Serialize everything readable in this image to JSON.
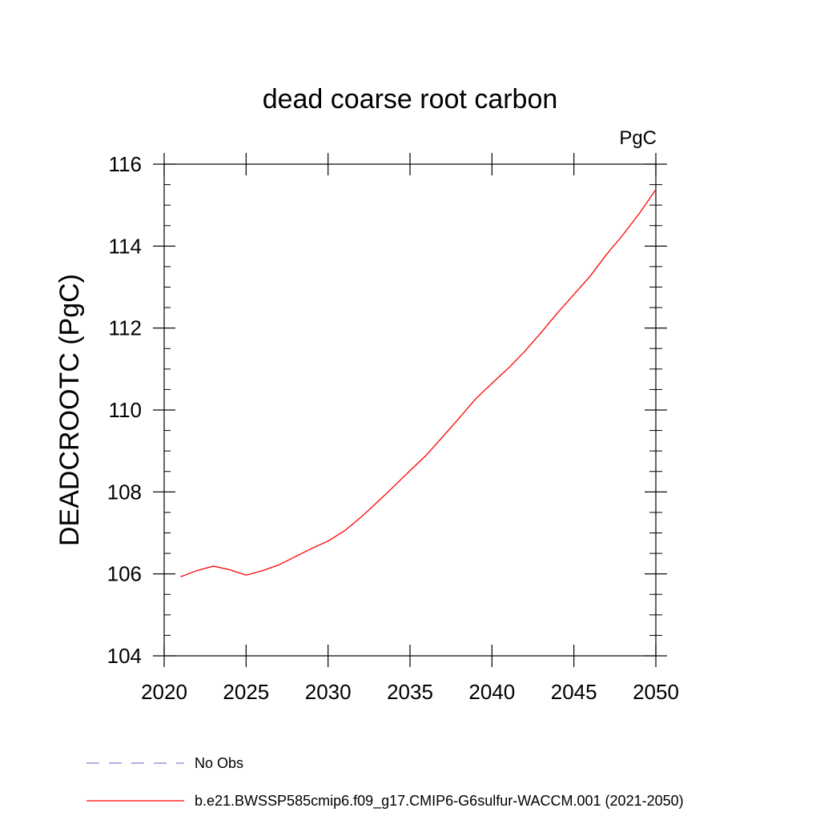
{
  "chart_data": {
    "type": "line",
    "title": "dead coarse root carbon",
    "units_label": "PgC",
    "ylabel": "DEADCROOTC  (PgC)",
    "xlabel": "",
    "xlim": [
      2020,
      2050
    ],
    "ylim": [
      104,
      116
    ],
    "x_ticks": [
      2020,
      2025,
      2030,
      2035,
      2040,
      2045,
      2050
    ],
    "y_ticks": [
      104,
      106,
      108,
      110,
      112,
      114,
      116
    ],
    "x_tick_labels": [
      "2020",
      "2025",
      "2030",
      "2035",
      "2040",
      "2045",
      "2050"
    ],
    "y_tick_labels": [
      "104",
      "106",
      "108",
      "110",
      "112",
      "114",
      "116"
    ],
    "grid": false,
    "legend_position": "bottom",
    "series": [
      {
        "name": "b.e21.BWSSP585cmip6.f09_g17.CMIP6-G6sulfur-WACCM.001 (2021-2050)",
        "color": "#ff0000",
        "x": [
          2021,
          2022,
          2023,
          2024,
          2025,
          2026,
          2027,
          2028,
          2029,
          2030,
          2031,
          2032,
          2033,
          2034,
          2035,
          2036,
          2037,
          2038,
          2039,
          2040,
          2041,
          2042,
          2043,
          2044,
          2045,
          2046,
          2047,
          2048,
          2049,
          2050
        ],
        "y": [
          105.93,
          106.08,
          106.19,
          106.1,
          105.97,
          106.08,
          106.22,
          106.42,
          106.62,
          106.8,
          107.05,
          107.38,
          107.75,
          108.13,
          108.52,
          108.9,
          109.35,
          109.8,
          110.27,
          110.65,
          111.02,
          111.43,
          111.89,
          112.37,
          112.82,
          113.27,
          113.8,
          114.28,
          114.8,
          115.38
        ]
      }
    ],
    "legend": [
      {
        "label": "No Obs",
        "color": "#8a7fd0",
        "style": "dashed"
      },
      {
        "label": "b.e21.BWSSP585cmip6.f09_g17.CMIP6-G6sulfur-WACCM.001 (2021-2050)",
        "color": "#ff0000",
        "style": "solid"
      }
    ]
  }
}
